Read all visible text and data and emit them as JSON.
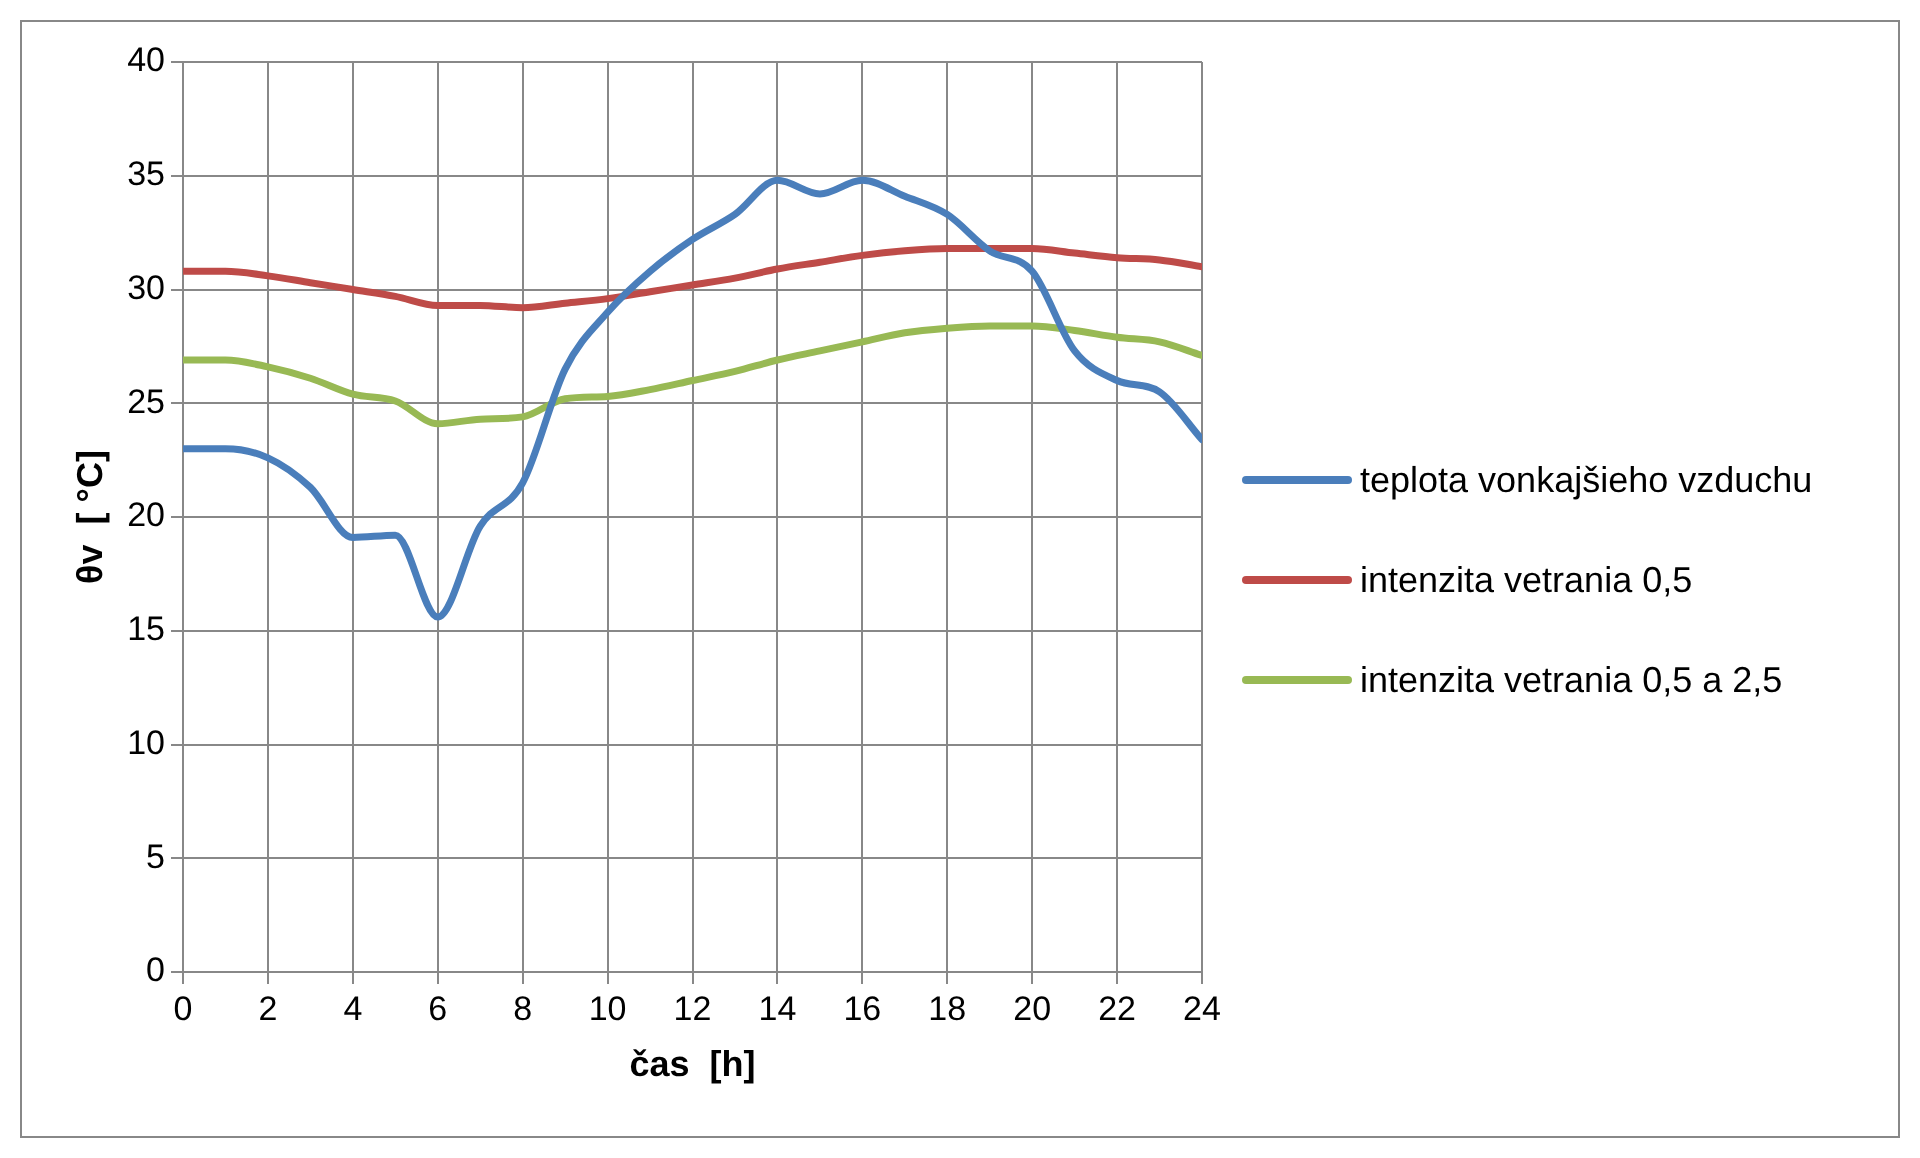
{
  "chart_data": {
    "type": "line",
    "xlabel": "čas  [h]",
    "ylabel": "θv  [ °C]",
    "x": [
      0,
      1,
      2,
      3,
      4,
      5,
      6,
      7,
      8,
      9,
      10,
      11,
      12,
      13,
      14,
      15,
      16,
      17,
      18,
      19,
      20,
      21,
      22,
      23,
      24
    ],
    "xlim": [
      0,
      24
    ],
    "xticks": [
      0,
      2,
      4,
      6,
      8,
      10,
      12,
      14,
      16,
      18,
      20,
      22,
      24
    ],
    "ylim": [
      0,
      40
    ],
    "yticks": [
      0,
      5,
      10,
      15,
      20,
      25,
      30,
      35,
      40
    ],
    "grid": true,
    "legend": "right",
    "marker": "none",
    "line_style": "solid",
    "series": [
      {
        "name": "teplota vonkajšieho vzduchu",
        "color": "#4a7ebb",
        "values": [
          23,
          23,
          22.6,
          21.3,
          19.1,
          19.2,
          15.6,
          19.6,
          21.5,
          26.5,
          29,
          30.8,
          32.2,
          33.3,
          34.8,
          34.2,
          34.8,
          34.1,
          33.3,
          31.7,
          30.8,
          27.3,
          26,
          25.5,
          23.4
        ]
      },
      {
        "name": "intenzita vetrania 0,5",
        "color": "#be4b48",
        "values": [
          30.8,
          30.8,
          30.6,
          30.3,
          30,
          29.7,
          29.3,
          29.3,
          29.2,
          29.4,
          29.6,
          29.9,
          30.2,
          30.5,
          30.9,
          31.2,
          31.5,
          31.7,
          31.8,
          31.8,
          31.8,
          31.6,
          31.4,
          31.3,
          31
        ]
      },
      {
        "name": "intenzita vetrania 0,5 a 2,5",
        "color": "#98b954",
        "values": [
          26.9,
          26.9,
          26.6,
          26.1,
          25.4,
          25.1,
          24.1,
          24.3,
          24.4,
          25.2,
          25.3,
          25.6,
          26,
          26.4,
          26.9,
          27.3,
          27.7,
          28.1,
          28.3,
          28.4,
          28.4,
          28.2,
          27.9,
          27.7,
          27.1
        ]
      }
    ]
  }
}
